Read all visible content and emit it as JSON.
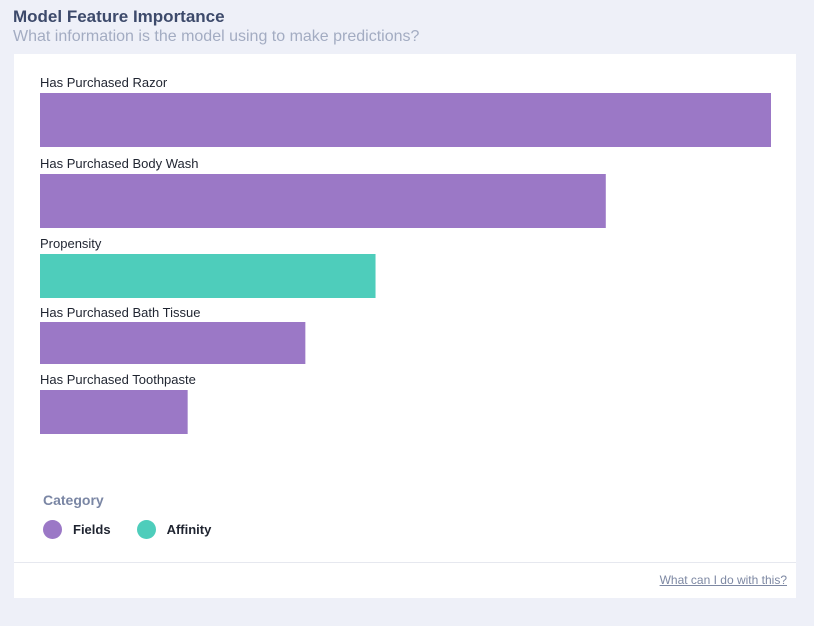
{
  "header": {
    "title": "Model Feature Importance",
    "subtitle": "What information is the model using to make predictions?"
  },
  "legend": {
    "title": "Category",
    "items": [
      {
        "label": "Fields",
        "color": "#9b78c6"
      },
      {
        "label": "Affinity",
        "color": "#4ecdbb"
      }
    ]
  },
  "footer": {
    "link_label": "What can I do with this?"
  },
  "chart_data": {
    "type": "bar",
    "orientation": "horizontal",
    "categories": [
      "Has Purchased Razor",
      "Has Purchased Body Wash",
      "Propensity",
      "Has Purchased Bath Tissue",
      "Has Purchased Toothpaste"
    ],
    "values": [
      1.0,
      0.774,
      0.459,
      0.363,
      0.202
    ],
    "value_scale": "relative importance (max = 1)",
    "groups": [
      "Fields",
      "Fields",
      "Affinity",
      "Fields",
      "Fields"
    ],
    "colors": {
      "Fields": "#9b78c6",
      "Affinity": "#4ecdbb"
    },
    "xlim": [
      0,
      1
    ],
    "grid": false,
    "axes_visible": false,
    "legend_position": "bottom-left"
  }
}
